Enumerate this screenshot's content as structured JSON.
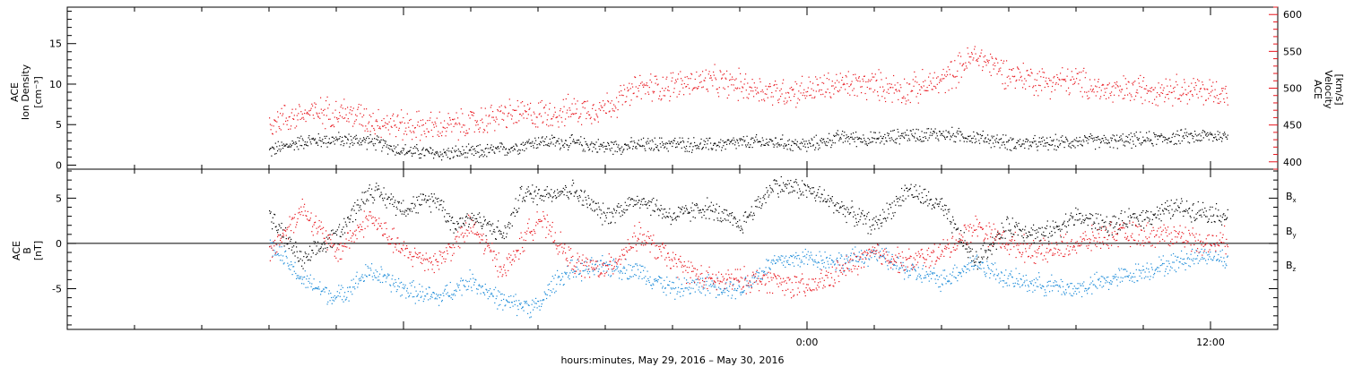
{
  "chart_data": [
    {
      "type": "scatter",
      "panel": "top",
      "left_axis_label_lines": [
        "ACE",
        "Ion Density",
        "[cm⁻³]"
      ],
      "right_axis_label_lines": [
        "ACE",
        "Velocity",
        "[km/s]"
      ],
      "y_left_range": [
        -0.5,
        19.5
      ],
      "y_left_ticks": [
        0,
        5,
        10,
        15
      ],
      "y_right_range": [
        390,
        610
      ],
      "y_right_ticks": [
        400,
        450,
        500,
        550,
        600
      ],
      "grid": false,
      "series": [
        {
          "color": "#000000",
          "axis": "left",
          "anchors": [
            [
              -16,
              1.8
            ],
            [
              -15,
              3
            ],
            [
              -14,
              3.2
            ],
            [
              -13,
              3
            ],
            [
              -12,
              1.8
            ],
            [
              -11,
              1.5
            ],
            [
              -10,
              1.6
            ],
            [
              -9,
              2
            ],
            [
              -8,
              3
            ],
            [
              -7,
              2.8
            ],
            [
              -6,
              2.3
            ],
            [
              -5,
              2.5
            ],
            [
              -4,
              2.7
            ],
            [
              -3,
              2.5
            ],
            [
              -2,
              2.8
            ],
            [
              -1,
              2.9
            ],
            [
              0,
              2.5
            ],
            [
              1,
              3.5
            ],
            [
              2,
              3.2
            ],
            [
              3,
              3.8
            ],
            [
              4,
              3.9
            ],
            [
              5,
              3.5
            ],
            [
              6,
              2.8
            ],
            [
              7,
              2.7
            ],
            [
              8,
              3
            ],
            [
              9,
              3
            ],
            [
              10,
              3.2
            ],
            [
              11,
              3.5
            ],
            [
              12,
              3.7
            ],
            [
              12.5,
              3.6
            ]
          ]
        },
        {
          "color": "#e8141c",
          "axis": "right",
          "anchors": [
            [
              -16,
              455
            ],
            [
              -15,
              465
            ],
            [
              -14,
              470
            ],
            [
              -13,
              458
            ],
            [
              -12,
              450
            ],
            [
              -11,
              448
            ],
            [
              -10,
              452
            ],
            [
              -9,
              465
            ],
            [
              -8,
              465
            ],
            [
              -7,
              470
            ],
            [
              -6,
              475
            ],
            [
              -5,
              500
            ],
            [
              -4,
              505
            ],
            [
              -3,
              510
            ],
            [
              -2,
              505
            ],
            [
              -1,
              495
            ],
            [
              0,
              498
            ],
            [
              1,
              505
            ],
            [
              2,
              505
            ],
            [
              3,
              498
            ],
            [
              4,
              510
            ],
            [
              5,
              545
            ],
            [
              6,
              520
            ],
            [
              7,
              510
            ],
            [
              8,
              510
            ],
            [
              9,
              495
            ],
            [
              10,
              500
            ],
            [
              11,
              500
            ],
            [
              12,
              495
            ],
            [
              12.5,
              495
            ]
          ]
        }
      ]
    },
    {
      "type": "scatter",
      "panel": "bottom",
      "left_axis_label_lines": [
        "ACE",
        "B",
        "[nT]"
      ],
      "y_range": [
        -9.5,
        8.2
      ],
      "y_ticks": [
        -5,
        0,
        5
      ],
      "zero_line": true,
      "grid": false,
      "legend": [
        "Bx",
        "By",
        "Bz"
      ],
      "legend_colors": [
        "#000000",
        "#1a8ad8",
        "#e8141c"
      ],
      "series": [
        {
          "name": "Bx",
          "color": "#000000",
          "anchors": [
            [
              -16,
              3
            ],
            [
              -15,
              -2
            ],
            [
              -14,
              1
            ],
            [
              -13,
              6
            ],
            [
              -12,
              4
            ],
            [
              -11,
              5
            ],
            [
              -10.5,
              2
            ],
            [
              -10,
              3
            ],
            [
              -9,
              1
            ],
            [
              -8.5,
              5.5
            ],
            [
              -8,
              5.5
            ],
            [
              -7,
              6
            ],
            [
              -6,
              3
            ],
            [
              -5,
              5
            ],
            [
              -4,
              3
            ],
            [
              -3,
              4
            ],
            [
              -2,
              2
            ],
            [
              -1,
              6.5
            ],
            [
              0,
              6
            ],
            [
              1,
              4
            ],
            [
              2,
              2
            ],
            [
              3,
              6
            ],
            [
              4,
              4
            ],
            [
              5,
              -2
            ],
            [
              6,
              2
            ],
            [
              7,
              1
            ],
            [
              8,
              3
            ],
            [
              9,
              2
            ],
            [
              10,
              3
            ],
            [
              11,
              4
            ],
            [
              12,
              3.5
            ],
            [
              12.5,
              3
            ]
          ]
        },
        {
          "name": "By",
          "color": "#1a8ad8",
          "anchors": [
            [
              -16,
              0
            ],
            [
              -15,
              -4
            ],
            [
              -14,
              -6
            ],
            [
              -13,
              -3
            ],
            [
              -12,
              -5
            ],
            [
              -11,
              -6
            ],
            [
              -10,
              -4
            ],
            [
              -9,
              -6.5
            ],
            [
              -8,
              -7
            ],
            [
              -7.5,
              -4
            ],
            [
              -7,
              -3
            ],
            [
              -6,
              -2.5
            ],
            [
              -5,
              -3
            ],
            [
              -4,
              -5
            ],
            [
              -3,
              -4.5
            ],
            [
              -2,
              -5
            ],
            [
              -1,
              -2
            ],
            [
              0,
              -1.5
            ],
            [
              1,
              -2
            ],
            [
              2,
              -1
            ],
            [
              3,
              -3
            ],
            [
              4,
              -4
            ],
            [
              5,
              -2
            ],
            [
              6,
              -4
            ],
            [
              7,
              -4.5
            ],
            [
              8,
              -5
            ],
            [
              9,
              -4
            ],
            [
              10,
              -3
            ],
            [
              11,
              -2
            ],
            [
              12,
              -1
            ],
            [
              12.5,
              -2
            ]
          ]
        },
        {
          "name": "Bz",
          "color": "#e8141c",
          "anchors": [
            [
              -16,
              -1
            ],
            [
              -15,
              4
            ],
            [
              -14,
              -1
            ],
            [
              -13,
              3
            ],
            [
              -12,
              -1
            ],
            [
              -11,
              -2
            ],
            [
              -10,
              2
            ],
            [
              -9,
              -3
            ],
            [
              -8,
              3
            ],
            [
              -7,
              -2
            ],
            [
              -6,
              -3
            ],
            [
              -5,
              1
            ],
            [
              -4,
              -2
            ],
            [
              -3,
              -4
            ],
            [
              -2,
              -4
            ],
            [
              -1,
              -4
            ],
            [
              0,
              -5
            ],
            [
              1,
              -3
            ],
            [
              2,
              -1
            ],
            [
              3,
              -2
            ],
            [
              4,
              -1
            ],
            [
              5,
              2
            ],
            [
              6,
              0
            ],
            [
              7,
              -1
            ],
            [
              8,
              0
            ],
            [
              9,
              1
            ],
            [
              10,
              1
            ],
            [
              11,
              1
            ],
            [
              12,
              0
            ],
            [
              12.5,
              0.5
            ]
          ]
        }
      ]
    }
  ],
  "x_axis": {
    "range": [
      -22,
      14
    ],
    "minor_tick_hours": 2,
    "ticks": [
      {
        "hour": 0,
        "label": "0:00"
      },
      {
        "hour": 12,
        "label": "12:00"
      }
    ],
    "label": "hours:minutes, May 29, 2016 – May 30, 2016"
  },
  "legend_labels": {
    "bx": {
      "main": "B",
      "sub": "x"
    },
    "by": {
      "main": "B",
      "sub": "y"
    },
    "bz": {
      "main": "B",
      "sub": "z"
    }
  }
}
